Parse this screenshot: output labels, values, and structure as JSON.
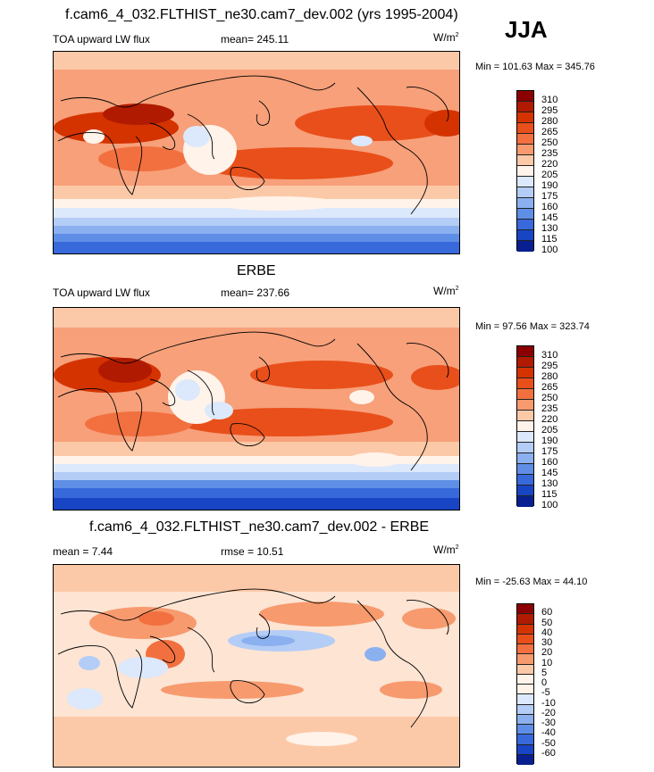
{
  "season": "JJA",
  "panels": [
    {
      "id": "model",
      "title": "f.cam6_4_032.FLTHIST_ne30.cam7_dev.002 (yrs 1995-2004)",
      "left_label": "TOA upward LW flux",
      "center_label": "mean= 245.11",
      "units": "W/m",
      "units_exp": "2",
      "minmax": "Min = 101.63 Max = 345.76",
      "levels": [
        "310",
        "295",
        "280",
        "265",
        "250",
        "235",
        "220",
        "205",
        "190",
        "175",
        "160",
        "145",
        "130",
        "115",
        "100"
      ],
      "colors": [
        "#8b0000",
        "#b01a00",
        "#d43300",
        "#e94f1a",
        "#f2703f",
        "#f79a6e",
        "#fcc9a8",
        "#fff3ea",
        "#dce8fb",
        "#b4cdf6",
        "#8bb0ef",
        "#5f8ee6",
        "#3869db",
        "#1845c4",
        "#08208f"
      ]
    },
    {
      "id": "obs",
      "title": "ERBE",
      "left_label": "TOA upward LW flux",
      "center_label": "mean= 237.66",
      "units": "W/m",
      "units_exp": "2",
      "minmax": "Min =  97.56 Max = 323.74",
      "levels": [
        "310",
        "295",
        "280",
        "265",
        "250",
        "235",
        "220",
        "205",
        "190",
        "175",
        "160",
        "145",
        "130",
        "115",
        "100"
      ],
      "colors": [
        "#8b0000",
        "#b01a00",
        "#d43300",
        "#e94f1a",
        "#f2703f",
        "#f79a6e",
        "#fcc9a8",
        "#fff3ea",
        "#dce8fb",
        "#b4cdf6",
        "#8bb0ef",
        "#5f8ee6",
        "#3869db",
        "#1845c4",
        "#08208f"
      ]
    },
    {
      "id": "diff",
      "title": "f.cam6_4_032.FLTHIST_ne30.cam7_dev.002 - ERBE",
      "left_label": "mean =   7.44",
      "center_label": "rmse =  10.51",
      "units": "W/m",
      "units_exp": "2",
      "minmax": "Min = -25.63 Max =  44.10",
      "levels": [
        "60",
        "50",
        "40",
        "30",
        "20",
        "10",
        "5",
        "0",
        "-5",
        "-10",
        "-20",
        "-30",
        "-40",
        "-50",
        "-60"
      ],
      "colors": [
        "#8b0000",
        "#b01a00",
        "#d43300",
        "#e94f1a",
        "#f2703f",
        "#f79a6e",
        "#fcc9a8",
        "#fff3ea",
        "#fff3ea",
        "#dce8fb",
        "#b4cdf6",
        "#8bb0ef",
        "#5f8ee6",
        "#3869db",
        "#1845c4",
        "#08208f"
      ]
    }
  ]
}
